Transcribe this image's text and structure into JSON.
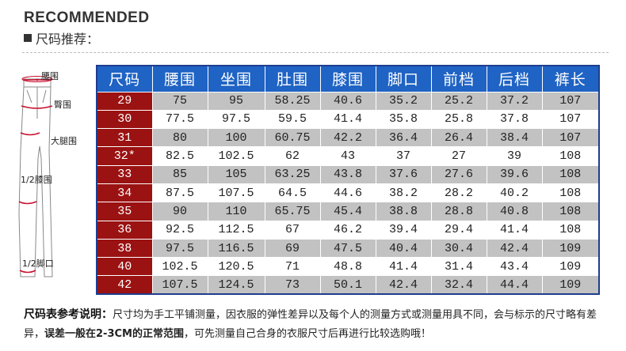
{
  "header": {
    "title": "RECOMMENDED",
    "subtitle": "尺码推荐："
  },
  "diagram": {
    "labels": {
      "waist": "腰围",
      "hip": "臀围",
      "thigh": "大腿围",
      "knee": "1/2膝围",
      "hem": "1/2脚口"
    }
  },
  "table": {
    "headers": [
      "尺码",
      "腰围",
      "坐围",
      "肚围",
      "膝围",
      "脚口",
      "前档",
      "后档",
      "裤长"
    ],
    "rows": [
      [
        "29",
        "75",
        "95",
        "58.25",
        "40.6",
        "35.2",
        "25.2",
        "37.2",
        "107"
      ],
      [
        "30",
        "77.5",
        "97.5",
        "59.5",
        "41.4",
        "35.8",
        "25.8",
        "37.8",
        "107"
      ],
      [
        "31",
        "80",
        "100",
        "60.75",
        "42.2",
        "36.4",
        "26.4",
        "38.4",
        "107"
      ],
      [
        "32*",
        "82.5",
        "102.5",
        "62",
        "43",
        "37",
        "27",
        "39",
        "108"
      ],
      [
        "33",
        "85",
        "105",
        "63.25",
        "43.8",
        "37.6",
        "27.6",
        "39.6",
        "108"
      ],
      [
        "34",
        "87.5",
        "107.5",
        "64.5",
        "44.6",
        "38.2",
        "28.2",
        "40.2",
        "108"
      ],
      [
        "35",
        "90",
        "110",
        "65.75",
        "45.4",
        "38.8",
        "28.8",
        "40.8",
        "108"
      ],
      [
        "36",
        "92.5",
        "112.5",
        "67",
        "46.2",
        "39.4",
        "29.4",
        "41.4",
        "108"
      ],
      [
        "38",
        "97.5",
        "116.5",
        "69",
        "47.5",
        "40.4",
        "30.4",
        "42.4",
        "109"
      ],
      [
        "40",
        "102.5",
        "120.5",
        "71",
        "48.8",
        "41.4",
        "31.4",
        "43.4",
        "109"
      ],
      [
        "42",
        "107.5",
        "124.5",
        "73",
        "50.1",
        "42.4",
        "32.4",
        "44.4",
        "109"
      ]
    ]
  },
  "note": {
    "title": "尺码表参考说明：",
    "part1": "尺寸均为手工平铺测量，因衣服的弹性差异以及每个人的测量方式或测量用具不同，会与标示的尺寸略有差异，",
    "part2": "误差一般在2-3CM的正常范围",
    "part3": "，可先测量自己合身的衣服尺寸后再进行比较选购哦！"
  },
  "colors": {
    "header_blue": "#1f63c4",
    "size_red": "#9b1212",
    "row_gray": "#c2c2c2",
    "diagram_red": "#c8102e"
  }
}
